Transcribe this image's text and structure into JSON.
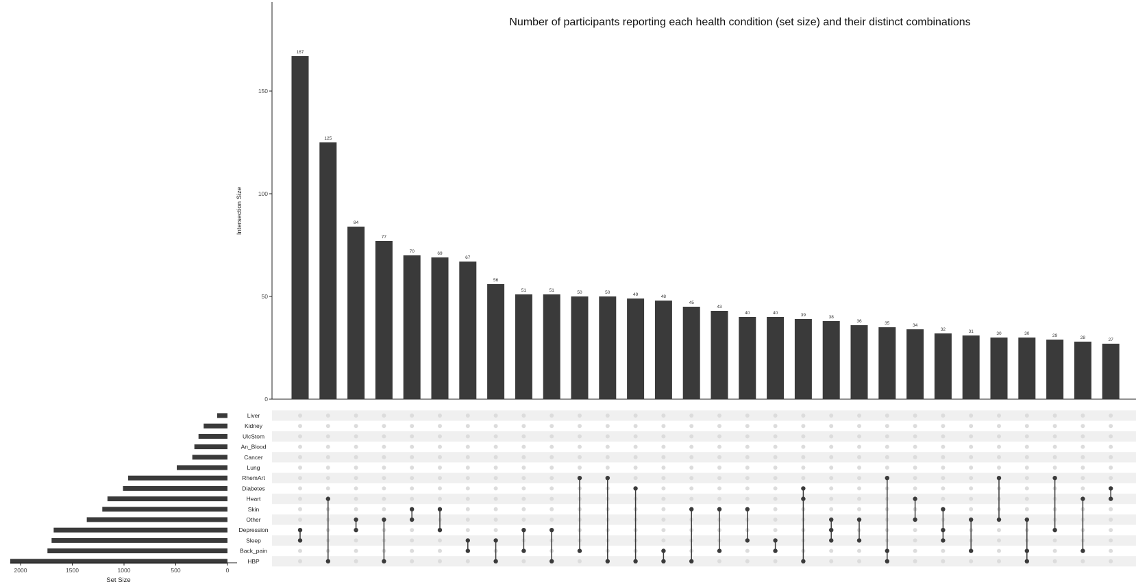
{
  "chart_data": {
    "type": "upset",
    "title": "Number of participants reporting each health condition (set size) and their distinct combinations",
    "intersection_axis": {
      "label": "Intersection Size",
      "ylim": [
        0,
        175
      ],
      "ticks": [
        0,
        50,
        100,
        150
      ],
      "tick_labels": [
        "0",
        "50",
        "100",
        "150"
      ]
    },
    "set_size_axis": {
      "label": "Set Size",
      "xlim": [
        0,
        2100
      ],
      "ticks": [
        2000,
        1500,
        1000,
        500,
        0
      ],
      "tick_labels": [
        "2000",
        "1500",
        "1000",
        "500",
        "0"
      ]
    },
    "sets": [
      {
        "name": "Liver",
        "size": 100
      },
      {
        "name": "Kidney",
        "size": 230
      },
      {
        "name": "UlcStom",
        "size": 280
      },
      {
        "name": "An_Blood",
        "size": 320
      },
      {
        "name": "Cancer",
        "size": 340
      },
      {
        "name": "Lung",
        "size": 490
      },
      {
        "name": "RhemArt",
        "size": 960
      },
      {
        "name": "Diabetes",
        "size": 1010
      },
      {
        "name": "Heart",
        "size": 1160
      },
      {
        "name": "Skin",
        "size": 1210
      },
      {
        "name": "Other",
        "size": 1360
      },
      {
        "name": "Depression",
        "size": 1680
      },
      {
        "name": "Sleep",
        "size": 1700
      },
      {
        "name": "Back_pain",
        "size": 1740
      },
      {
        "name": "HBP",
        "size": 2100
      }
    ],
    "intersections": [
      {
        "value": 167,
        "label": "167",
        "sets": [
          "Depression",
          "Sleep"
        ]
      },
      {
        "value": 125,
        "label": "125",
        "sets": [
          "Heart",
          "HBP"
        ]
      },
      {
        "value": 84,
        "label": "84",
        "sets": [
          "Other",
          "Depression"
        ]
      },
      {
        "value": 77,
        "label": "77",
        "sets": [
          "Other",
          "HBP"
        ]
      },
      {
        "value": 70,
        "label": "70",
        "sets": [
          "Skin",
          "Other"
        ]
      },
      {
        "value": 69,
        "label": "69",
        "sets": [
          "Skin",
          "Depression"
        ]
      },
      {
        "value": 67,
        "label": "67",
        "sets": [
          "Sleep",
          "Back_pain"
        ]
      },
      {
        "value": 56,
        "label": "56",
        "sets": [
          "Sleep",
          "HBP"
        ]
      },
      {
        "value": 51,
        "label": "51",
        "sets": [
          "Depression",
          "Back_pain"
        ]
      },
      {
        "value": 51,
        "label": "51",
        "sets": [
          "Depression",
          "HBP"
        ]
      },
      {
        "value": 50,
        "label": "50",
        "sets": [
          "RhemArt",
          "Back_pain"
        ]
      },
      {
        "value": 50,
        "label": "50",
        "sets": [
          "RhemArt",
          "HBP"
        ]
      },
      {
        "value": 49,
        "label": "49",
        "sets": [
          "Diabetes",
          "HBP"
        ]
      },
      {
        "value": 48,
        "label": "48",
        "sets": [
          "Back_pain",
          "HBP"
        ]
      },
      {
        "value": 45,
        "label": "45",
        "sets": [
          "Skin",
          "HBP"
        ]
      },
      {
        "value": 43,
        "label": "43",
        "sets": [
          "Skin",
          "Back_pain"
        ]
      },
      {
        "value": 40,
        "label": "40",
        "sets": [
          "Skin",
          "Sleep"
        ]
      },
      {
        "value": 40,
        "label": "40",
        "sets": [
          "Sleep",
          "Back_pain"
        ]
      },
      {
        "value": 39,
        "label": "39",
        "sets": [
          "Diabetes",
          "Heart",
          "HBP"
        ]
      },
      {
        "value": 38,
        "label": "38",
        "sets": [
          "Other",
          "Depression",
          "Sleep"
        ]
      },
      {
        "value": 36,
        "label": "36",
        "sets": [
          "Other",
          "Sleep"
        ]
      },
      {
        "value": 35,
        "label": "35",
        "sets": [
          "RhemArt",
          "Back_pain",
          "HBP"
        ]
      },
      {
        "value": 34,
        "label": "34",
        "sets": [
          "Heart",
          "Other"
        ]
      },
      {
        "value": 32,
        "label": "32",
        "sets": [
          "Skin",
          "Depression",
          "Sleep"
        ]
      },
      {
        "value": 31,
        "label": "31",
        "sets": [
          "Other",
          "Back_pain"
        ]
      },
      {
        "value": 30,
        "label": "30",
        "sets": [
          "RhemArt",
          "Other"
        ]
      },
      {
        "value": 30,
        "label": "30",
        "sets": [
          "Other",
          "Back_pain",
          "HBP"
        ]
      },
      {
        "value": 29,
        "label": "29",
        "sets": [
          "RhemArt",
          "Depression"
        ]
      },
      {
        "value": 28,
        "label": "28",
        "sets": [
          "Heart",
          "Back_pain"
        ]
      },
      {
        "value": 27,
        "label": "27",
        "sets": [
          "Diabetes",
          "Heart"
        ]
      }
    ],
    "colors": {
      "bar": "#3a3a3a",
      "dot_active": "#3a3a3a",
      "dot_inactive": "#dcdcdc",
      "stripe": "#f0f0f0",
      "text": "#222222"
    }
  }
}
